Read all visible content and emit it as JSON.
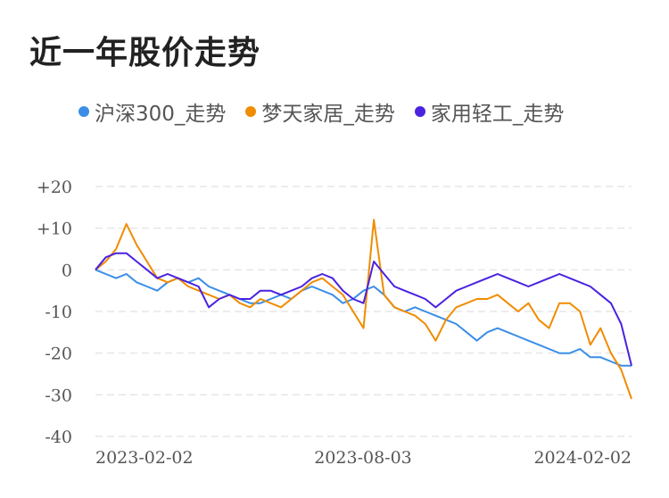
{
  "title": "近一年股价走势",
  "chart_data": {
    "type": "line",
    "title": "近一年股价走势",
    "xlabel": "",
    "ylabel": "",
    "x_ticks": [
      "2023-02-02",
      "2023-08-03",
      "2024-02-02"
    ],
    "y_ticks": [
      "+20",
      "+10",
      "0",
      "-10",
      "-20",
      "-30",
      "-40"
    ],
    "ylim": [
      -40,
      20
    ],
    "grid": true,
    "legend_position": "top",
    "x": [
      "2023-02-02",
      "2023-02-09",
      "2023-02-16",
      "2023-02-23",
      "2023-03-02",
      "2023-03-09",
      "2023-03-16",
      "2023-03-23",
      "2023-03-30",
      "2023-04-06",
      "2023-04-13",
      "2023-04-20",
      "2023-04-27",
      "2023-05-04",
      "2023-05-11",
      "2023-05-18",
      "2023-05-25",
      "2023-06-01",
      "2023-06-08",
      "2023-06-15",
      "2023-06-22",
      "2023-06-29",
      "2023-07-06",
      "2023-07-13",
      "2023-07-20",
      "2023-07-27",
      "2023-08-03",
      "2023-08-10",
      "2023-08-17",
      "2023-08-24",
      "2023-08-31",
      "2023-09-07",
      "2023-09-14",
      "2023-09-21",
      "2023-09-28",
      "2023-10-05",
      "2023-10-12",
      "2023-10-19",
      "2023-10-26",
      "2023-11-02",
      "2023-11-09",
      "2023-11-16",
      "2023-11-23",
      "2023-11-30",
      "2023-12-07",
      "2023-12-14",
      "2023-12-21",
      "2023-12-28",
      "2024-01-04",
      "2024-01-11",
      "2024-01-18",
      "2024-01-25",
      "2024-02-02"
    ],
    "series": [
      {
        "name": "沪深300_走势",
        "color": "#3a8ee6",
        "values": [
          0,
          -1,
          -2,
          -1,
          -3,
          -4,
          -5,
          -3,
          -2,
          -3,
          -2,
          -4,
          -5,
          -6,
          -7,
          -8,
          -8,
          -7,
          -6,
          -7,
          -5,
          -4,
          -5,
          -6,
          -8,
          -7,
          -5,
          -4,
          -6,
          -9,
          -10,
          -9,
          -10,
          -11,
          -12,
          -13,
          -15,
          -17,
          -15,
          -14,
          -15,
          -16,
          -17,
          -18,
          -19,
          -20,
          -20,
          -19,
          -21,
          -21,
          -22,
          -23,
          -23
        ]
      },
      {
        "name": "梦天家居_走势",
        "color": "#f08c00",
        "values": [
          0,
          2,
          5,
          11,
          6,
          2,
          -2,
          -3,
          -2,
          -4,
          -5,
          -6,
          -7,
          -6,
          -8,
          -9,
          -7,
          -8,
          -9,
          -7,
          -5,
          -3,
          -2,
          -4,
          -6,
          -10,
          -14,
          12,
          -6,
          -9,
          -10,
          -11,
          -13,
          -17,
          -12,
          -9,
          -8,
          -7,
          -7,
          -6,
          -8,
          -10,
          -8,
          -12,
          -14,
          -8,
          -8,
          -10,
          -18,
          -14,
          -20,
          -24,
          -31
        ]
      },
      {
        "name": "家用轻工_走势",
        "color": "#4a22e0",
        "values": [
          0,
          3,
          4,
          4,
          2,
          0,
          -2,
          -1,
          -2,
          -3,
          -4,
          -9,
          -7,
          -6,
          -7,
          -7,
          -5,
          -5,
          -6,
          -5,
          -4,
          -2,
          -1,
          -2,
          -5,
          -7,
          -8,
          2,
          -1,
          -4,
          -5,
          -6,
          -7,
          -9,
          -7,
          -5,
          -4,
          -3,
          -2,
          -1,
          -2,
          -3,
          -4,
          -3,
          -2,
          -1,
          -2,
          -3,
          -4,
          -6,
          -8,
          -13,
          -23
        ]
      }
    ]
  }
}
